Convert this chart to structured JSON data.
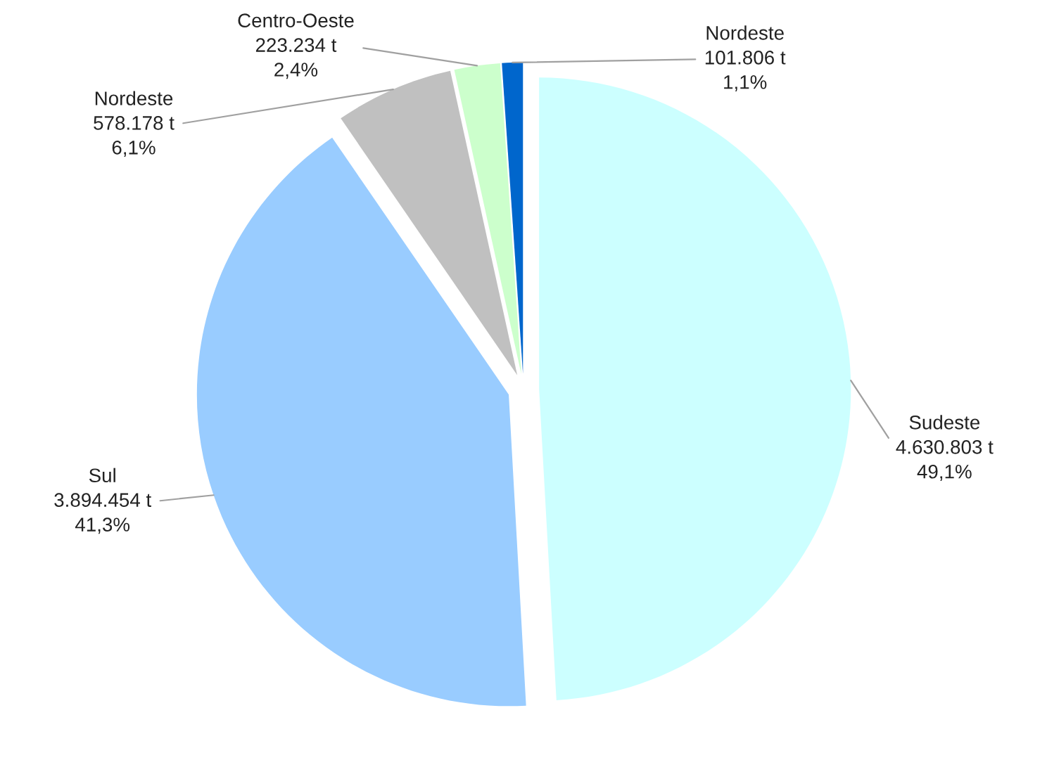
{
  "chart_data": {
    "type": "pie",
    "categories": [
      "Sudeste",
      "Sul",
      "Nordeste",
      "Centro-Oeste",
      "Nordeste"
    ],
    "values": [
      4630803,
      3894454,
      578178,
      223234,
      101806
    ],
    "value_labels": [
      "4.630.803 t\n49,1%",
      "3.894.454 t\n41,3%",
      "578.178 t\n6,1%",
      "223.234 t\n2,4%",
      "101.806 t\n1,1%"
    ],
    "colors": [
      "#ccffff",
      "#99ccff",
      "#c0c0c0",
      "#ccffcc",
      "#0066cc"
    ]
  }
}
